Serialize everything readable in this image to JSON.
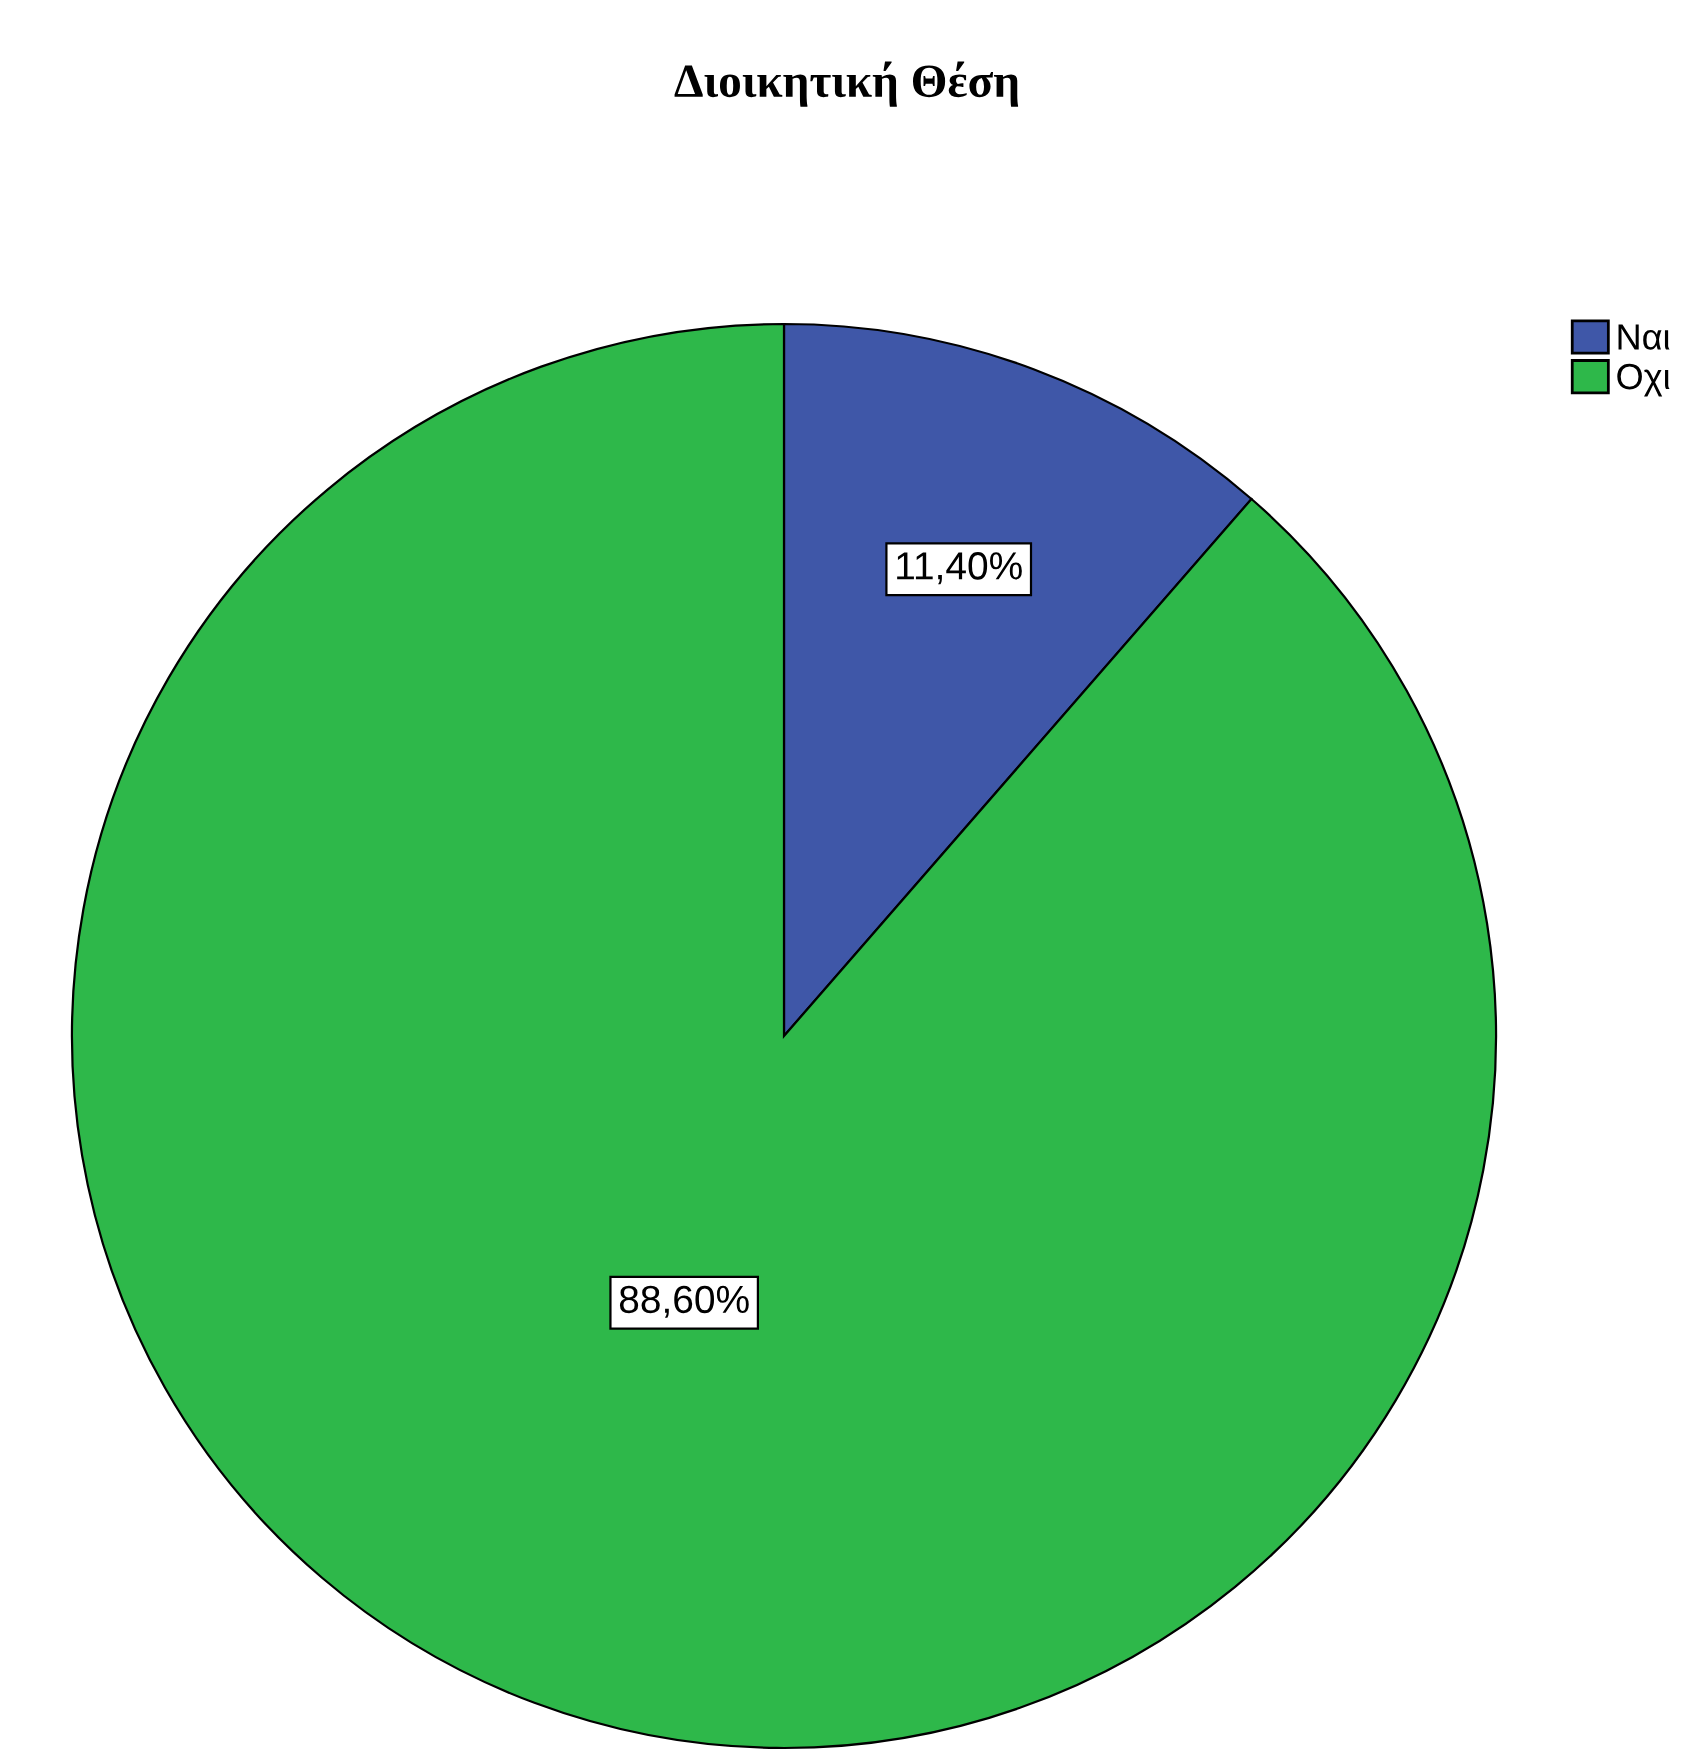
{
  "chart_data": {
    "type": "pie",
    "title": "Διοικητική Θέση",
    "categories": [
      "Ναι",
      "Οχι"
    ],
    "values": [
      11.4,
      88.6
    ],
    "colors": [
      "#3f57a8",
      "#2eb84a"
    ],
    "value_labels": [
      "11,40%",
      "88,60%"
    ],
    "legend": "top right"
  }
}
